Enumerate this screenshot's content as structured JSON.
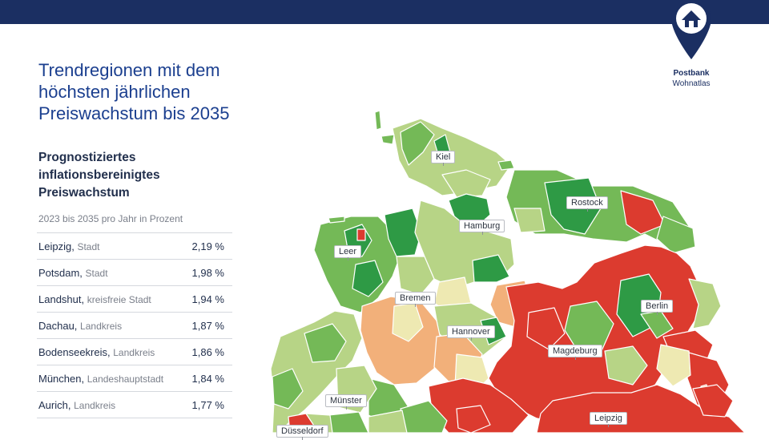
{
  "brand": {
    "name": "Postbank",
    "sub": "Wohnatlas",
    "color": "#1b2f62"
  },
  "title": "Trendregionen mit dem höchsten jährlichen Preiswachstum bis 2035",
  "subtitle": "Prognostiziertes inflationsbereinigtes Preiswachstum",
  "period": "2023 bis 2035 pro Jahr in Prozent",
  "ranking": [
    {
      "name": "Leipzig,",
      "type": "Stadt",
      "value": "2,19 %"
    },
    {
      "name": "Potsdam,",
      "type": "Stadt",
      "value": "1,98 %"
    },
    {
      "name": "Landshut,",
      "type": "kreisfreie Stadt",
      "value": "1,94 %"
    },
    {
      "name": "Dachau,",
      "type": "Landkreis",
      "value": "1,87 %"
    },
    {
      "name": "Bodenseekreis,",
      "type": "Landkreis",
      "value": "1,86 %"
    },
    {
      "name": "München,",
      "type": "Landeshauptstadt",
      "value": "1,84 %"
    },
    {
      "name": "Aurich,",
      "type": "Landkreis",
      "value": "1,77 %"
    }
  ],
  "map": {
    "cities": [
      "Kiel",
      "Rostock",
      "Hamburg",
      "Leer",
      "Bremen",
      "Berlin",
      "Hannover",
      "Magdeburg",
      "Münster",
      "Leipzig",
      "Düsseldorf"
    ],
    "colors": {
      "dark_green": "#2e9a45",
      "green": "#74b957",
      "light_green": "#b7d486",
      "pale": "#eee9b2",
      "orange": "#f2b07a",
      "red": "#dc3b2f",
      "sea": "#ffffff"
    }
  }
}
